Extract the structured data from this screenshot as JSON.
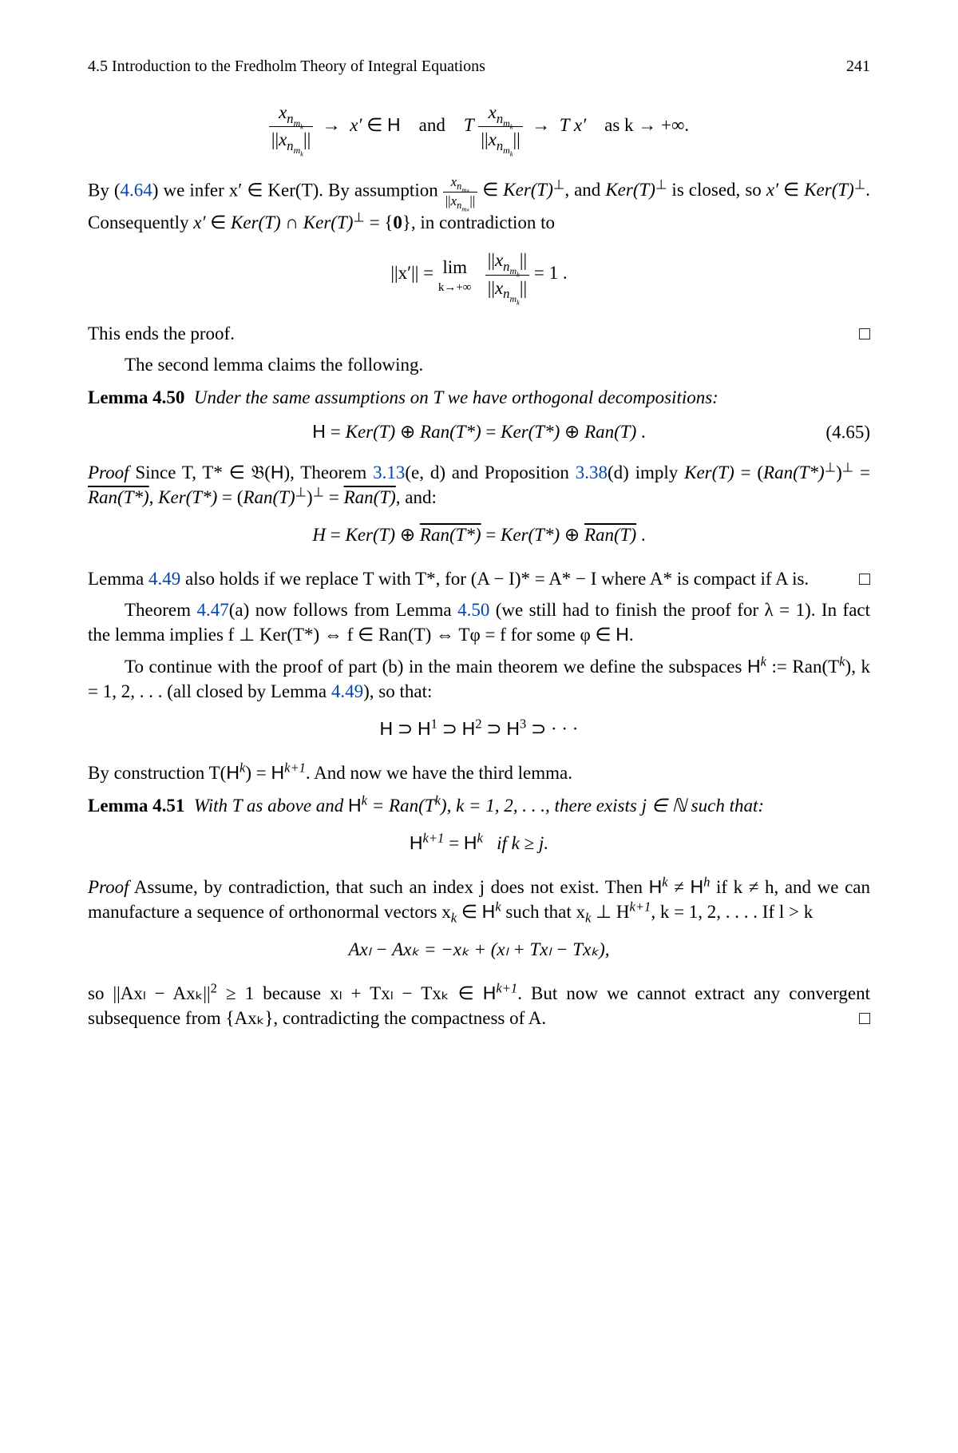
{
  "header": {
    "section": "4.5   Introduction to the Fredholm Theory of Integral Equations",
    "page": "241"
  },
  "eq1": {
    "left_num": "x",
    "left_sub": "n",
    "left_subsub": "mₖ",
    "arrow": "→",
    "xprime": "x′ ∈",
    "H": "H",
    "and": "and",
    "T": "T",
    "arrow2": "→",
    "Txp": "T x′",
    "as": "as k → +∞."
  },
  "p1": {
    "t1": "By (",
    "ref1": "4.64",
    "t2": ") we infer x′ ∈ Ker(T). By assumption ",
    "t3": " ∈ Ker(T)",
    "perp": "⊥",
    "t4": ", and Ker(T)",
    "t5": " is closed, so x′ ∈ Ker(T)",
    "t6": ". Consequently x′ ∈ Ker(T) ∩ Ker(T)",
    "t7": " = {0}, in contradiction to"
  },
  "eq2": {
    "lhs": "||x′|| = ",
    "lim": "lim",
    "limsub": "k→+∞",
    "eqone": " = 1 ."
  },
  "p2": {
    "text": "This ends the proof.",
    "qed": "□"
  },
  "p3": {
    "text": "The second lemma claims the following."
  },
  "lemma450": {
    "head": "Lemma 4.50",
    "body": "Under the same assumptions on T we have orthogonal decompositions:"
  },
  "eq465": {
    "H": "H",
    "rest": " = Ker(T) ⊕ Ran(T*) = Ker(T*) ⊕ Ran(T) .",
    "num": "(4.65)"
  },
  "proof1": {
    "head": "Proof",
    "t1": " Since T, T* ∈ 𝔅(",
    "H": "H",
    "t2": "), Theorem ",
    "ref313": "3.13",
    "t3": "(e, d) and Proposition ",
    "ref338": "3.38",
    "t4": "(d) imply Ker(T) = (Ran(T*)",
    "perp": "⊥",
    "t5": ")",
    "t6": " = ",
    "ran1": "Ran(T*)",
    "t7": ", Ker(T*) = (Ran(T)",
    "t8": ")",
    "t9": " = ",
    "ran2": "Ran(T)",
    "t10": ", and:"
  },
  "eqH": {
    "lhs": "H = Ker(T) ⊕ ",
    "r1": "Ran(T*)",
    "mid": " = Ker(T*) ⊕ ",
    "r2": "Ran(T)",
    "dot": " ."
  },
  "p4": {
    "t1": "Lemma ",
    "ref449": "4.49",
    "t2": " also holds if we replace T with T*, for (A − I)* = A* − I where A* is compact if A is.",
    "qed": "□"
  },
  "p5": {
    "t1": "Theorem ",
    "ref447": "4.47",
    "t2": "(a) now follows from Lemma ",
    "ref450": "4.50",
    "t3": " (we still had to finish the proof for λ = 1). In fact the lemma implies  f ⊥ Ker(T*) ⇔ f ∈ Ran(T) ⇔ Tφ = f for some φ ∈ ",
    "H": "H",
    "t4": "."
  },
  "p6": {
    "t1": "To continue with the proof of part (b) in the main theorem we define the subspaces ",
    "H": "H",
    "t2": " := Ran(T",
    "k": "k",
    "t3": "), k = 1, 2, . . . (all closed by Lemma ",
    "ref449b": "4.49",
    "t4": "), so that:"
  },
  "eqchain": {
    "H": "H",
    "sup1": "1",
    "sup2": "2",
    "sup3": "3",
    "sup": " ⊃ ",
    "dots": " ⊃ · · ·"
  },
  "p7": {
    "t1": "By construction T(",
    "H": "H",
    "k": "k",
    "t2": ") = ",
    "kp1": "k+1",
    "t3": ". And now we have the third lemma."
  },
  "lemma451": {
    "head": "Lemma 4.51",
    "t1": "With T as above and ",
    "H": "H",
    "k": "k",
    "t2": " = Ran(T",
    "t3": "), k = 1, 2, . . ., there exists j ∈ ℕ such that:"
  },
  "eq451": {
    "H": "H",
    "kp1": "k+1",
    "eq": " = ",
    "k": "k",
    "cond": "   if k ≥ j."
  },
  "proof2": {
    "head": "Proof",
    "t1": " Assume, by contradiction, that such an index j does not exist. Then ",
    "H": "H",
    "k": "k",
    "neq": " ≠ ",
    "h": "h",
    "t2": " if k ≠ h, and we can manufacture a sequence of orthonormal vectors x",
    "sub_k": "k",
    "t3": " ∈ ",
    "t4": " such that x",
    "t5": " ⊥ H",
    "kp1": "k+1",
    "t6": ", k = 1, 2, . . . . If l > k"
  },
  "eqA": {
    "text": "Axₗ − Axₖ = −xₖ + (xₗ + Txₗ − Txₖ),"
  },
  "p8": {
    "t1": "so ||Axₗ − Axₖ||",
    "sq": "2",
    "t2": " ≥ 1 because xₗ + Txₗ − Txₖ ∈ ",
    "H": "H",
    "kp1": "k+1",
    "t3": ". But now we cannot extract any convergent subsequence from {Axₖ}, contradicting the compactness of A.",
    "qed": "□"
  }
}
